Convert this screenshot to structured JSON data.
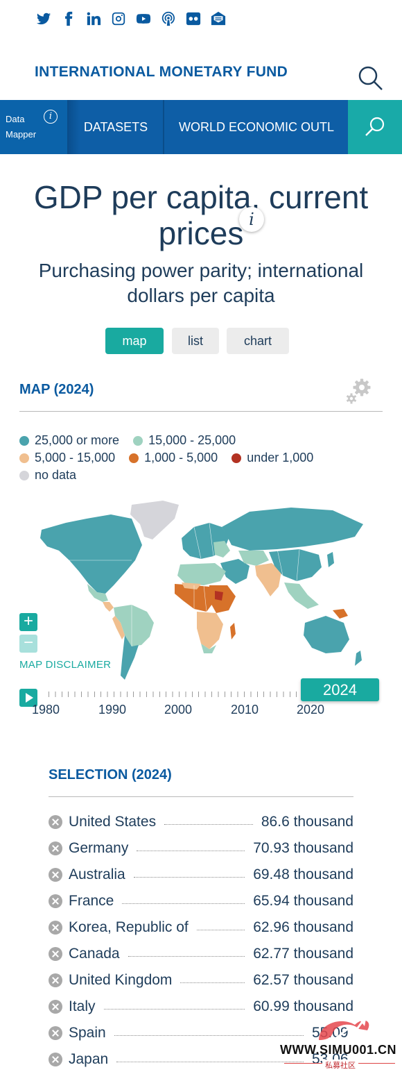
{
  "social": [
    "twitter-icon",
    "facebook-icon",
    "linkedin-icon",
    "instagram-icon",
    "youtube-icon",
    "podcast-icon",
    "flickr-icon",
    "newsletter-icon"
  ],
  "header": {
    "org_name": "INTERNATIONAL MONETARY FUND"
  },
  "nav": {
    "data_mapper_line1": "Data",
    "data_mapper_line2": "Mapper",
    "datasets": "DATASETS",
    "weo": "WORLD ECONOMIC OUTL"
  },
  "title": {
    "line1": "GDP per capita, current",
    "line2": "prices",
    "subtitle_line1": "Purchasing power parity; international",
    "subtitle_line2": "dollars per capita"
  },
  "views": {
    "map": "map",
    "list": "list",
    "chart": "chart",
    "active": "map"
  },
  "map_section": {
    "title": "MAP (2024)",
    "legend": [
      {
        "label": "25,000 or more",
        "color": "#4aa3ad"
      },
      {
        "label": "15,000 - 25,000",
        "color": "#9fd2c0"
      },
      {
        "label": "5,000 - 15,000",
        "color": "#f0bf8f"
      },
      {
        "label": "1,000 - 5,000",
        "color": "#d7722a"
      },
      {
        "label": "under 1,000",
        "color": "#b33222"
      },
      {
        "label": "no data",
        "color": "#d5d5da"
      }
    ],
    "disclaimer": "MAP DISCLAIMER"
  },
  "timeline": {
    "labels": [
      "1980",
      "1990",
      "2000",
      "2010",
      "2020"
    ],
    "selected_year": "2024"
  },
  "selection": {
    "title": "SELECTION (2024)",
    "rows": [
      {
        "country": "United States",
        "value": "86.6 thousand"
      },
      {
        "country": "Germany",
        "value": "70.93 thousand"
      },
      {
        "country": "Australia",
        "value": "69.48 thousand"
      },
      {
        "country": "France",
        "value": "65.94 thousand"
      },
      {
        "country": "Korea, Republic of",
        "value": "62.96 thousand"
      },
      {
        "country": "Canada",
        "value": "62.77 thousand"
      },
      {
        "country": "United Kingdom",
        "value": "62.57 thousand"
      },
      {
        "country": "Italy",
        "value": "60.99 thousand"
      },
      {
        "country": "Spain",
        "value": "55.09"
      },
      {
        "country": "Japan",
        "value": "53.06"
      }
    ]
  },
  "watermark": {
    "text": "WWW.SIMU001.CN",
    "sub": "私募社区"
  }
}
